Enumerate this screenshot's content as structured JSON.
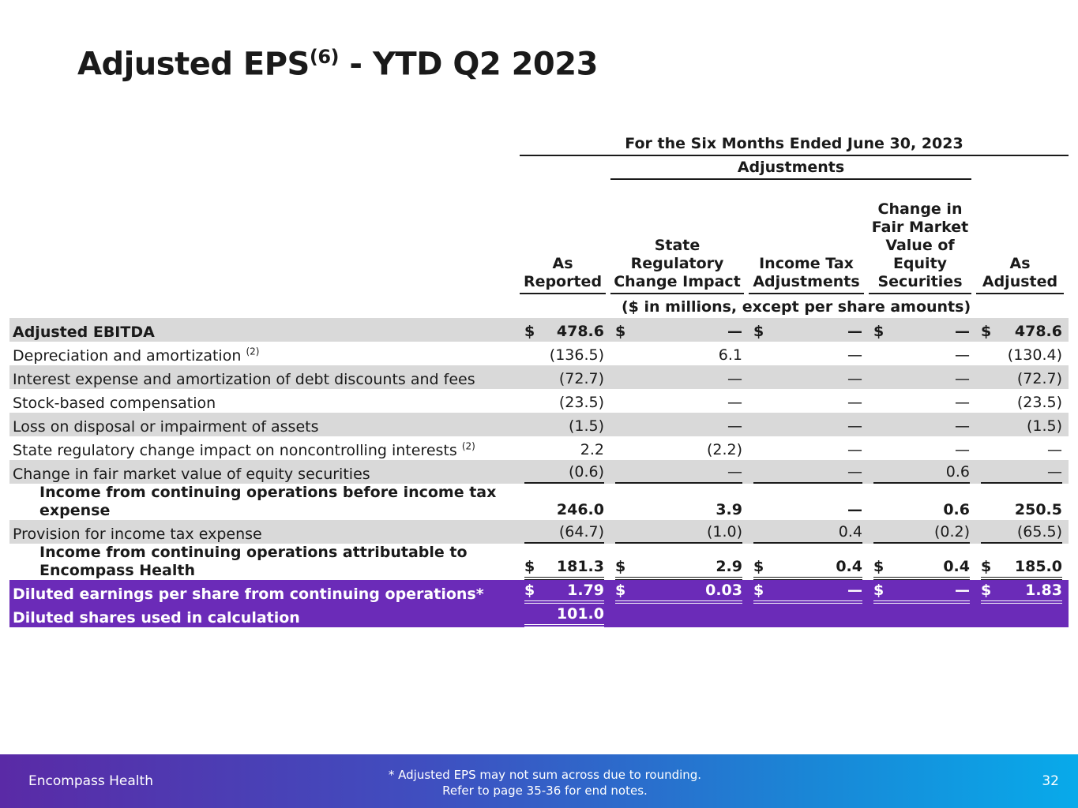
{
  "title": "Adjusted EPS",
  "title_note": "(6)",
  "title_suffix": "- YTD Q2 2023",
  "table": {
    "period": "For the Six Months Ended June 30, 2023",
    "adjustments_label": "Adjustments",
    "columns": [
      "As Reported",
      "State Regulatory Change Impact",
      "Income Tax Adjustments",
      "Change in Fair Market Value of Equity Securities",
      "As Adjusted"
    ],
    "units": "($ in millions, except per share amounts)",
    "rows": [
      {
        "label": "Adjusted EBITDA",
        "currency": "$",
        "values": [
          "478.6",
          "—",
          "—",
          "—",
          "478.6"
        ]
      },
      {
        "label": "Depreciation and amortization",
        "note": "(2)",
        "values": [
          "(136.5)",
          "6.1",
          "—",
          "—",
          "(130.4)"
        ]
      },
      {
        "label": "Interest expense and amortization of debt discounts and fees",
        "values": [
          "(72.7)",
          "—",
          "—",
          "—",
          "(72.7)"
        ]
      },
      {
        "label": "Stock-based compensation",
        "values": [
          "(23.5)",
          "—",
          "—",
          "—",
          "(23.5)"
        ]
      },
      {
        "label": "Loss on disposal or impairment of assets",
        "values": [
          "(1.5)",
          "—",
          "—",
          "—",
          "(1.5)"
        ]
      },
      {
        "label": "State regulatory change impact on noncontrolling interests",
        "note": "(2)",
        "values": [
          "2.2",
          "(2.2)",
          "—",
          "—",
          "—"
        ]
      },
      {
        "label": "Change in fair market value of equity securities",
        "values": [
          "(0.6)",
          "—",
          "—",
          "0.6",
          "—"
        ]
      },
      {
        "label": "Income from continuing operations before income tax expense",
        "values": [
          "246.0",
          "3.9",
          "—",
          "0.6",
          "250.5"
        ]
      },
      {
        "label": "Provision for income tax expense",
        "values": [
          "(64.7)",
          "(1.0)",
          "0.4",
          "(0.2)",
          "(65.5)"
        ]
      },
      {
        "label": "Income from continuing operations attributable to Encompass Health",
        "currency": "$",
        "values": [
          "181.3",
          "2.9",
          "0.4",
          "0.4",
          "185.0"
        ]
      },
      {
        "label": "Diluted earnings per share from continuing operations*",
        "currency": "$",
        "values": [
          "1.79",
          "0.03",
          "—",
          "—",
          "1.83"
        ]
      },
      {
        "label": "Diluted shares used in calculation",
        "values": [
          "101.0"
        ]
      }
    ]
  },
  "footer": {
    "company": "Encompass Health",
    "notes": [
      "* Adjusted EPS may not sum across due to rounding.",
      "Refer to page 35-36 for end notes."
    ],
    "page": "32"
  }
}
